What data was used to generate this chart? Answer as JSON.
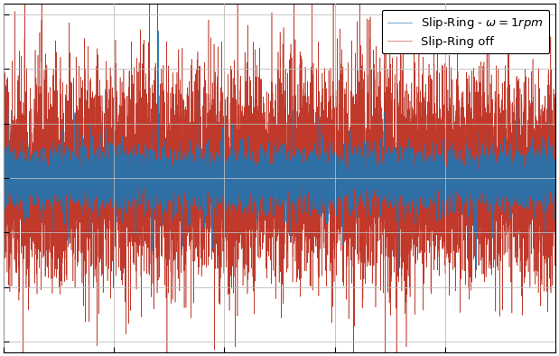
{
  "legend_labels": [
    "Slip-Ring - $\\omega = 1rpm$",
    "Slip-Ring off"
  ],
  "colors": [
    "#1f77b4",
    "#c0392b"
  ],
  "xlim": [
    0,
    1
  ],
  "ylim": [
    -1.6,
    1.6
  ],
  "grid": true,
  "n_samples": 10000,
  "seed_blue": 7,
  "seed_red": 13,
  "background_color": "#ffffff"
}
